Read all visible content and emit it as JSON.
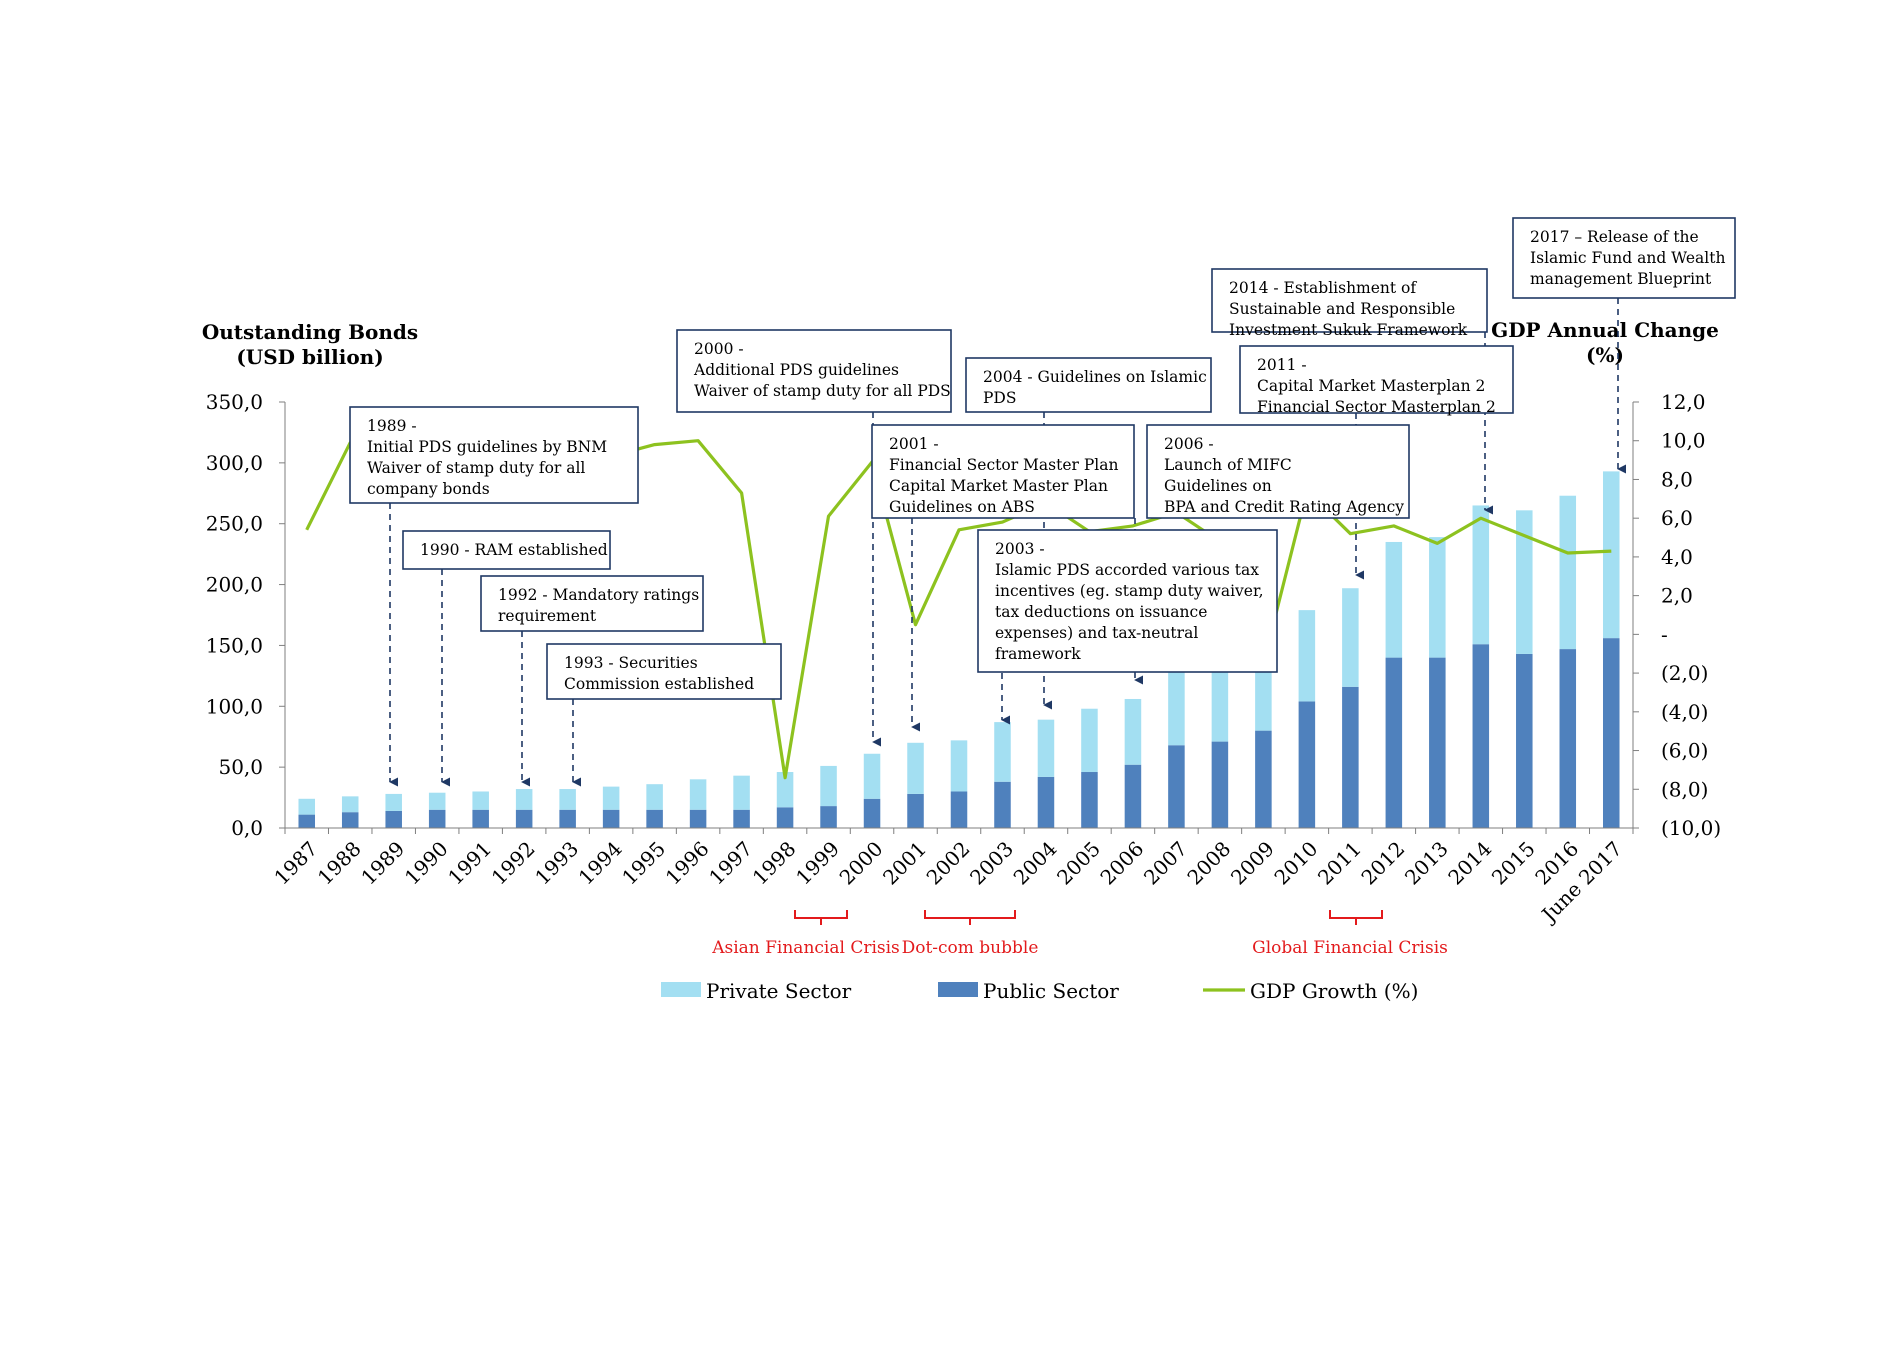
{
  "chart_data": {
    "type": "bar",
    "subtype": "stacked bar with line on secondary axis",
    "left_axis_title": [
      "Outstanding Bonds",
      "(USD billion)"
    ],
    "right_axis_title": [
      "GDP Annual Change",
      "(%)"
    ],
    "categories": [
      "1987",
      "1988",
      "1989",
      "1990",
      "1991",
      "1992",
      "1993",
      "1994",
      "1995",
      "1996",
      "1997",
      "1998",
      "1999",
      "2000",
      "2001",
      "2002",
      "2003",
      "2004",
      "2005",
      "2006",
      "2007",
      "2008",
      "2009",
      "2010",
      "2011",
      "2012",
      "2013",
      "2014",
      "2015",
      "2016",
      "June 2017"
    ],
    "left_axis": {
      "min": 0,
      "max": 350,
      "step": 50,
      "tick_labels": [
        "0,0",
        "50,0",
        "100,0",
        "150,0",
        "200,0",
        "250,0",
        "300,0",
        "350,0"
      ]
    },
    "right_axis": {
      "min": -10,
      "max": 12,
      "step": 2,
      "tick_labels": [
        "(10,0)",
        "(8,0)",
        "(6,0)",
        "(4,0)",
        "(2,0)",
        "-",
        "2,0",
        "4,0",
        "6,0",
        "8,0",
        "10,0",
        "12,0"
      ]
    },
    "series": [
      {
        "name": "Public Sector",
        "kind": "bar",
        "axis": "left",
        "color": "#4f81bd",
        "values": [
          11,
          13,
          14,
          15,
          15,
          15,
          15,
          15,
          15,
          15,
          15,
          17,
          18,
          24,
          28,
          30,
          38,
          42,
          46,
          52,
          68,
          71,
          80,
          104,
          116,
          140,
          140,
          151,
          143,
          147,
          156
        ]
      },
      {
        "name": "Private Sector",
        "kind": "bar",
        "axis": "left",
        "color": "#a3dff2",
        "values": [
          13,
          13,
          14,
          14,
          15,
          17,
          17,
          19,
          21,
          25,
          28,
          29,
          33,
          37,
          42,
          42,
          49,
          47,
          52,
          54,
          70,
          72,
          80,
          75,
          81,
          95,
          99,
          114,
          118,
          126,
          137
        ]
      },
      {
        "name": "GDP Growth (%)",
        "kind": "line",
        "axis": "right",
        "color": "#8dc21f",
        "values": [
          5.4,
          9.9,
          9.1,
          9.0,
          9.5,
          8.9,
          9.9,
          9.2,
          9.8,
          10.0,
          7.3,
          -7.4,
          6.1,
          8.9,
          0.5,
          5.4,
          5.8,
          6.8,
          5.3,
          5.6,
          6.3,
          4.8,
          -1.5,
          7.4,
          5.2,
          5.6,
          4.7,
          6.0,
          5.1,
          4.2,
          4.3
        ]
      }
    ],
    "crisis_labels": [
      {
        "label": "Asian Financial Crisis",
        "from": "1998",
        "to": "1999"
      },
      {
        "label": "Dot-com bubble",
        "from": "2002",
        "to": "2003"
      },
      {
        "label": "Global Financial Crisis",
        "from": "2011",
        "to": "2011"
      }
    ],
    "annotations": [
      {
        "lines": [
          "1989 -",
          "Initial PDS guidelines by BNM",
          "Waiver of stamp duty for all",
          "company bonds"
        ],
        "target": "1989"
      },
      {
        "lines": [
          "1990 - RAM established"
        ],
        "target": "1990"
      },
      {
        "lines": [
          "1992 - Mandatory ratings",
          "requirement"
        ],
        "target": "1992"
      },
      {
        "lines": [
          "1993 - Securities",
          "Commission established"
        ],
        "target": "1993"
      },
      {
        "lines": [
          "2000 -",
          "Additional PDS guidelines",
          "Waiver of stamp duty for all PDS"
        ],
        "target": "2000"
      },
      {
        "lines": [
          "2001 -",
          "Financial Sector Master Plan",
          "Capital Market Master Plan",
          "Guidelines on ABS"
        ],
        "target": "2001"
      },
      {
        "lines": [
          "2003 -",
          "Islamic PDS accorded various tax",
          "incentives (eg. stamp duty waiver,",
          "tax deductions on issuance",
          "expenses)  and tax-neutral",
          "framework"
        ],
        "target": "2003"
      },
      {
        "lines": [
          "2004 - Guidelines on Islamic",
          "PDS"
        ],
        "target": "2004"
      },
      {
        "lines": [
          "2006 -",
          "Launch of MIFC",
          "Guidelines on",
          "BPA and Credit Rating Agency"
        ],
        "target": "2006"
      },
      {
        "lines": [
          "2011 -",
          "Capital Market Masterplan 2",
          "Financial Sector Masterplan 2"
        ],
        "target": "2011"
      },
      {
        "lines": [
          "2014 - Establishment of",
          "Sustainable and Responsible",
          "Investment Sukuk Framework"
        ],
        "target": "2014"
      },
      {
        "lines": [
          "2017 – Release of the",
          "Islamic Fund and Wealth",
          "management Blueprint"
        ],
        "target": "June 2017"
      }
    ],
    "legend": {
      "placement": "bottom-center",
      "items": [
        {
          "label": "Private Sector",
          "color": "#a3dff2",
          "kind": "bar"
        },
        {
          "label": "Public Sector",
          "color": "#4f81bd",
          "kind": "bar"
        },
        {
          "label": "GDP Growth (%)",
          "color": "#8dc21f",
          "kind": "line"
        }
      ]
    },
    "grid": false
  }
}
